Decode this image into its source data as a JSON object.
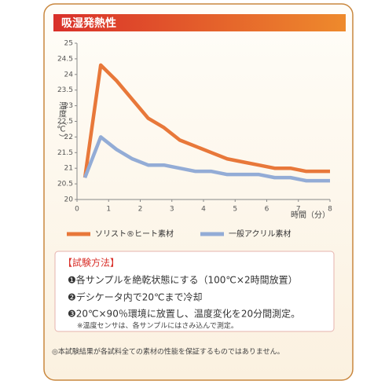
{
  "chart_data": {
    "type": "line",
    "title": "吸湿発熱性",
    "y_label": "温度（℃）",
    "x_label": "時間（分）",
    "x": [
      0.25,
      0.75,
      1.25,
      1.75,
      2.25,
      2.75,
      3.25,
      3.75,
      4.25,
      4.75,
      5.25,
      5.75,
      6.25,
      6.75,
      7.25,
      7.75,
      8
    ],
    "series": [
      {
        "name": "ソリスト®ヒート素材",
        "color": "#e8783a",
        "values": [
          20.7,
          24.3,
          23.8,
          23.2,
          22.6,
          22.3,
          21.9,
          21.7,
          21.5,
          21.3,
          21.2,
          21.1,
          21.0,
          21.0,
          20.9,
          20.9,
          20.9
        ]
      },
      {
        "name": "一般アクリル素材",
        "color": "#93acd6",
        "values": [
          20.7,
          22.0,
          21.6,
          21.3,
          21.1,
          21.1,
          21.0,
          20.9,
          20.9,
          20.8,
          20.8,
          20.8,
          20.7,
          20.7,
          20.6,
          20.6,
          20.6
        ]
      }
    ],
    "xlim": [
      0,
      8
    ],
    "xticks": [
      0,
      1,
      2,
      3,
      4,
      5,
      6,
      7,
      8
    ],
    "ylim": [
      20,
      25
    ],
    "yticks": [
      20,
      20.5,
      21,
      21.5,
      22,
      22.5,
      23,
      23.5,
      24,
      24.5,
      25
    ]
  },
  "method": {
    "heading": "【試験方法】",
    "steps": [
      "❶各サンプルを絶乾状態にする（100℃×2時間放置）",
      "❷デシケータ内で20℃まで冷却",
      "❸20℃×90％環境に放置し、温度変化を20分間測定。"
    ],
    "note": "※温度センサは、各サンプルにはさみ込んで測定。"
  },
  "footer": "◎本試験結果が各試料全ての素材の性能を保証するものではありません。"
}
